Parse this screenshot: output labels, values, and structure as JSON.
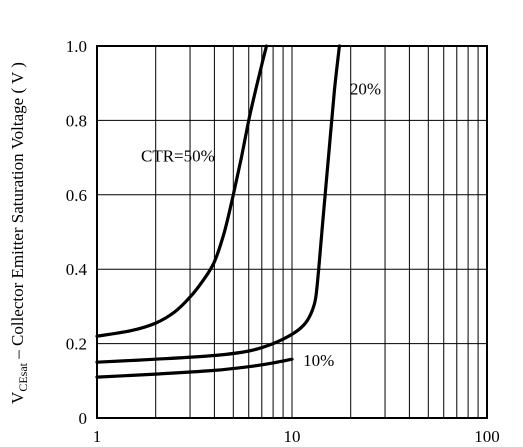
{
  "chart_data": {
    "type": "line",
    "x_scale": "log",
    "xlim": [
      1,
      100
    ],
    "ylim": [
      0,
      1.0
    ],
    "grid": true,
    "x_ticks": [
      {
        "value": 1,
        "label": "1"
      },
      {
        "value": 10,
        "label": "10"
      },
      {
        "value": 100,
        "label": "100"
      }
    ],
    "y_ticks": [
      {
        "value": 0,
        "label": "0"
      },
      {
        "value": 0.2,
        "label": "0.2"
      },
      {
        "value": 0.4,
        "label": "0.4"
      },
      {
        "value": 0.6,
        "label": "0.6"
      },
      {
        "value": 0.8,
        "label": "0.8"
      },
      {
        "value": 1.0,
        "label": "1.0"
      }
    ],
    "ylabel": {
      "main": "V",
      "subscript": "CEsat",
      "rest": " – Collector Emitter Saturation Voltage ( V )"
    },
    "series": [
      {
        "name": "CTR=50%",
        "x": [
          1,
          1.5,
          2,
          2.5,
          3,
          3.5,
          4,
          4.5,
          5,
          5.5,
          6,
          6.5,
          7,
          7.4
        ],
        "y": [
          0.22,
          0.235,
          0.255,
          0.285,
          0.325,
          0.37,
          0.42,
          0.5,
          0.6,
          0.7,
          0.8,
          0.88,
          0.95,
          1.0
        ]
      },
      {
        "name": "20%",
        "x": [
          1,
          2,
          4,
          6,
          8,
          10,
          11.5,
          12.5,
          13.2,
          13.7,
          14.5,
          15.5,
          16.5,
          17.5
        ],
        "y": [
          0.15,
          0.158,
          0.168,
          0.18,
          0.2,
          0.225,
          0.25,
          0.28,
          0.32,
          0.4,
          0.55,
          0.72,
          0.88,
          1.0
        ]
      },
      {
        "name": "10%",
        "x": [
          1,
          2,
          4,
          6,
          8,
          10
        ],
        "y": [
          0.11,
          0.118,
          0.128,
          0.138,
          0.148,
          0.158
        ]
      }
    ],
    "annotations": [
      {
        "text": "CTR=50%",
        "x": 2.6,
        "y": 0.69
      },
      {
        "text": "20%",
        "x": 23.8,
        "y": 0.87
      },
      {
        "text": "10%",
        "x": 13.7,
        "y": 0.14
      }
    ]
  }
}
